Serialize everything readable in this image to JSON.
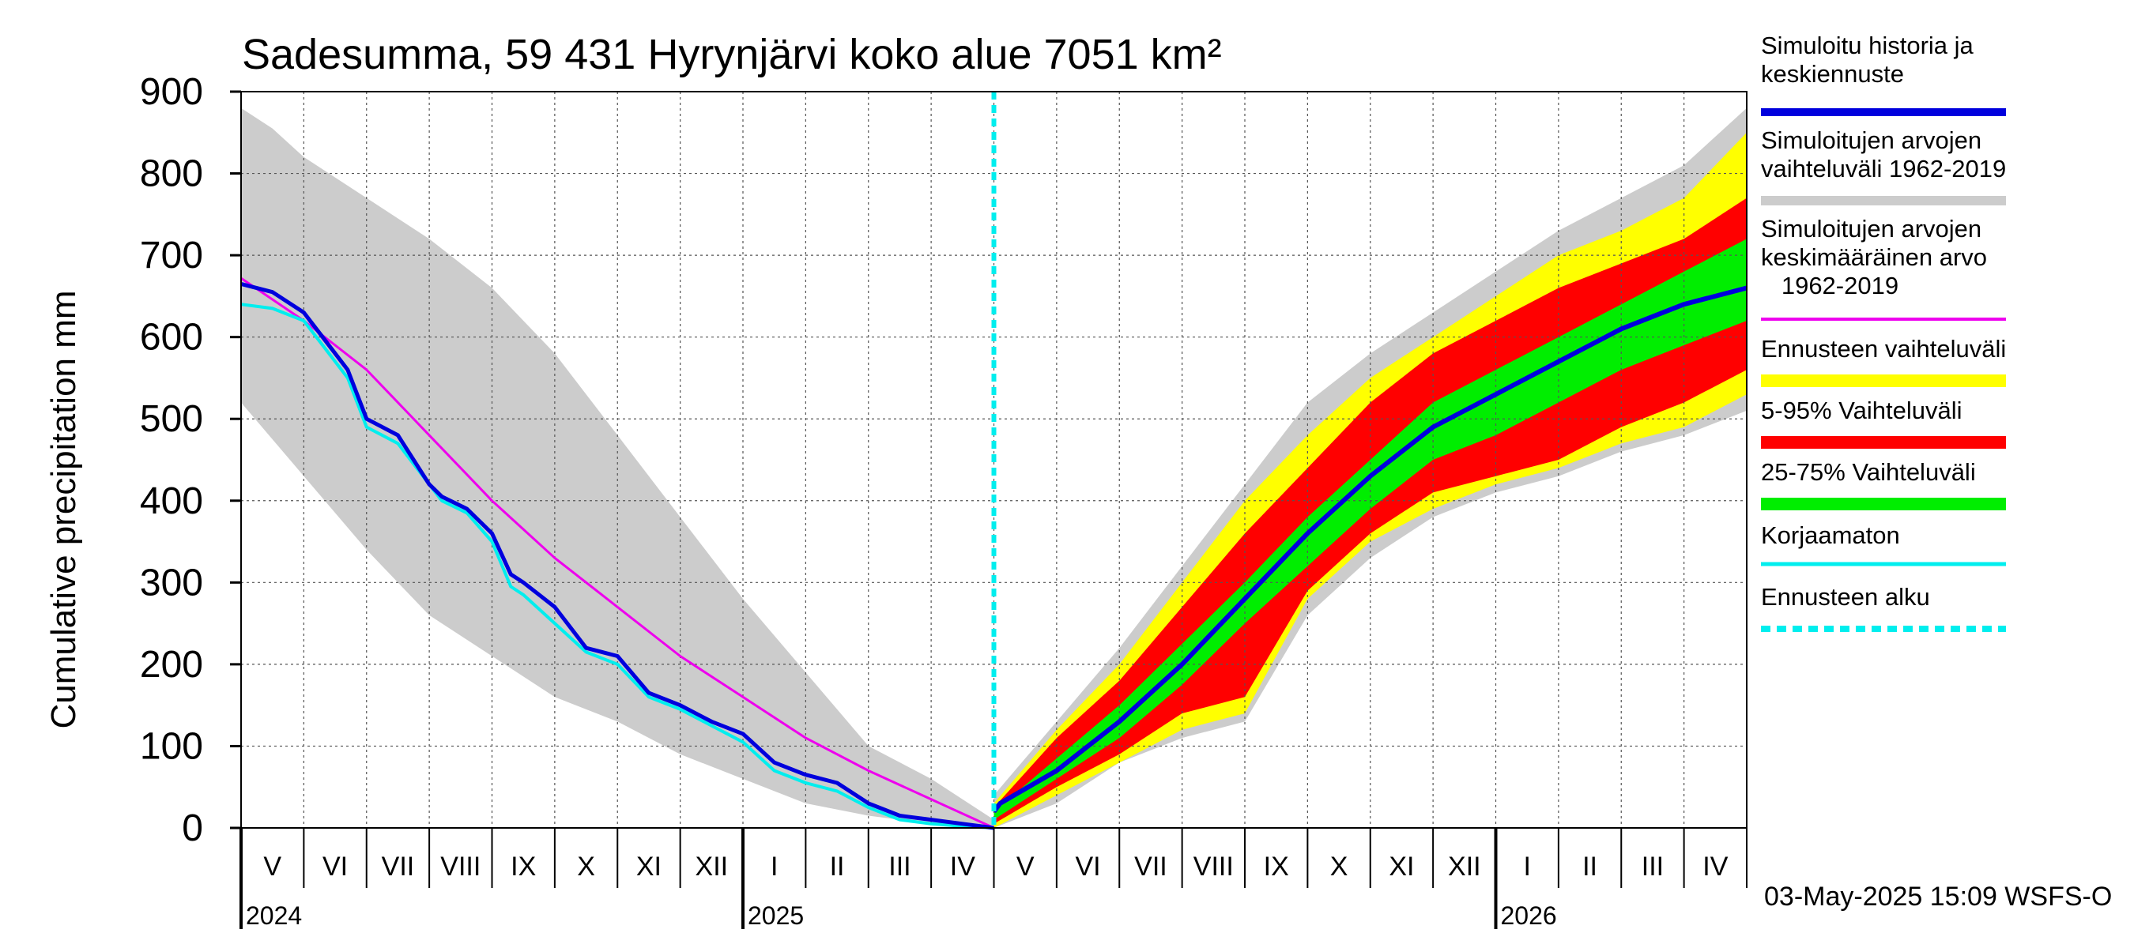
{
  "chart_data": {
    "type": "area",
    "title": "Sadesumma, 59 431 Hyrynjärvi koko alue 7051 km²",
    "ylabel": "Cumulative precipitation   mm",
    "ylim": [
      0,
      900
    ],
    "yticks": [
      0,
      100,
      200,
      300,
      400,
      500,
      600,
      700,
      800,
      900
    ],
    "x_start_month": "2024-05",
    "x_end_month": "2026-05",
    "forecast_start_month_index": 12.0,
    "month_labels": [
      "V",
      "VI",
      "VII",
      "VIII",
      "IX",
      "X",
      "XI",
      "XII",
      "I",
      "II",
      "III",
      "IV",
      "V",
      "VI",
      "VII",
      "VIII",
      "IX",
      "X",
      "XI",
      "XII",
      "I",
      "II",
      "III",
      "IV"
    ],
    "year_labels": [
      {
        "label": "2024",
        "month_index": 0
      },
      {
        "label": "2025",
        "month_index": 8
      },
      {
        "label": "2026",
        "month_index": 20
      }
    ],
    "timestamp": "03-May-2025 15:09 WSFS-O",
    "legend": [
      {
        "label": "Simuloitu historia ja keskiennuste",
        "color": "#0000dd",
        "style": "line"
      },
      {
        "label": "Simuloitujen arvojen vaihteluväli 1962-2019",
        "color": "#cccccc",
        "style": "band"
      },
      {
        "label": "Simuloitujen arvojen keskimääräinen arvo 1962-2019",
        "color": "#ee00ee",
        "style": "thin"
      },
      {
        "label": "Ennusteen vaihteluväli",
        "color": "#ffff00",
        "style": "band"
      },
      {
        "label": "5-95% Vaihteluväli",
        "color": "#ff0000",
        "style": "band"
      },
      {
        "label": "25-75% Vaihteluväli",
        "color": "#00ee00",
        "style": "band"
      },
      {
        "label": "Korjaamaton",
        "color": "#00eeee",
        "style": "thin"
      },
      {
        "label": "Ennusteen alku",
        "color": "#00eeee",
        "style": "dashed"
      }
    ],
    "series": {
      "hist_range_low": {
        "x": [
          0,
          1,
          2,
          3,
          4,
          5,
          6,
          7,
          8,
          9,
          10,
          11,
          12
        ],
        "y": [
          520,
          430,
          340,
          260,
          210,
          160,
          130,
          90,
          60,
          30,
          15,
          5,
          0
        ]
      },
      "hist_range_high": {
        "x": [
          0,
          0.5,
          1,
          2,
          3,
          4,
          5,
          6,
          7,
          8,
          9,
          10,
          11,
          12
        ],
        "y": [
          880,
          855,
          820,
          770,
          720,
          660,
          580,
          480,
          380,
          280,
          190,
          100,
          60,
          10
        ]
      },
      "hist_mean": {
        "x": [
          0,
          1,
          2,
          3,
          4,
          5,
          6,
          7,
          8,
          9,
          10,
          11,
          12
        ],
        "y": [
          672,
          620,
          560,
          480,
          400,
          330,
          270,
          210,
          160,
          110,
          70,
          35,
          0
        ]
      },
      "simulated": {
        "x": [
          0,
          0.5,
          1,
          1.3,
          1.7,
          2,
          2.5,
          3,
          3.2,
          3.6,
          4,
          4.3,
          4.5,
          5,
          5.5,
          6,
          6.5,
          7,
          7.5,
          8,
          8.5,
          9,
          9.5,
          10,
          10.5,
          11,
          11.5,
          12
        ],
        "y": [
          665,
          655,
          630,
          600,
          560,
          500,
          480,
          420,
          405,
          390,
          360,
          310,
          300,
          270,
          220,
          210,
          165,
          150,
          130,
          115,
          80,
          65,
          55,
          30,
          15,
          10,
          5,
          0
        ]
      },
      "uncorrected": {
        "x": [
          0,
          0.5,
          1,
          1.3,
          1.7,
          2,
          2.5,
          3,
          3.2,
          3.6,
          4,
          4.3,
          4.5,
          5,
          5.5,
          6,
          6.5,
          7,
          7.5,
          8,
          8.5,
          9,
          9.5,
          10,
          10.5,
          11,
          11.5,
          12
        ],
        "y": [
          640,
          635,
          620,
          590,
          550,
          490,
          470,
          420,
          400,
          385,
          350,
          295,
          285,
          250,
          215,
          200,
          160,
          145,
          125,
          105,
          70,
          55,
          45,
          25,
          10,
          5,
          2,
          0
        ]
      },
      "forecast_mean": {
        "x": [
          12,
          12.1,
          13,
          14,
          15,
          16,
          17,
          18,
          19,
          20,
          21,
          22,
          23,
          24
        ],
        "y": [
          20,
          30,
          70,
          130,
          200,
          280,
          360,
          430,
          490,
          530,
          570,
          610,
          640,
          660
        ]
      },
      "band_range_low": {
        "x": [
          12,
          13,
          14,
          15,
          16,
          17,
          18,
          19,
          20,
          21,
          22,
          23,
          24
        ],
        "y": [
          0,
          40,
          80,
          120,
          140,
          280,
          350,
          390,
          420,
          440,
          470,
          490,
          530
        ]
      },
      "band_range_high": {
        "x": [
          12,
          13,
          14,
          15,
          16,
          17,
          18,
          19,
          20,
          21,
          22,
          23,
          24
        ],
        "y": [
          30,
          120,
          200,
          300,
          400,
          480,
          550,
          600,
          650,
          700,
          730,
          770,
          850
        ]
      },
      "band_595_low": {
        "x": [
          12,
          13,
          14,
          15,
          16,
          17,
          18,
          19,
          20,
          21,
          22,
          23,
          24
        ],
        "y": [
          5,
          50,
          90,
          140,
          160,
          290,
          360,
          410,
          430,
          450,
          490,
          520,
          560
        ]
      },
      "band_595_high": {
        "x": [
          12,
          13,
          14,
          15,
          16,
          17,
          18,
          19,
          20,
          21,
          22,
          23,
          24
        ],
        "y": [
          25,
          110,
          180,
          270,
          360,
          440,
          520,
          580,
          620,
          660,
          690,
          720,
          770
        ]
      },
      "band_2575_low": {
        "x": [
          12,
          13,
          14,
          15,
          16,
          17,
          18,
          19,
          20,
          21,
          22,
          23,
          24
        ],
        "y": [
          10,
          60,
          110,
          175,
          250,
          320,
          390,
          450,
          480,
          520,
          560,
          590,
          620
        ]
      },
      "band_2575_high": {
        "x": [
          12,
          13,
          14,
          15,
          16,
          17,
          18,
          19,
          20,
          21,
          22,
          23,
          24
        ],
        "y": [
          20,
          85,
          150,
          225,
          300,
          380,
          450,
          520,
          560,
          600,
          640,
          680,
          720
        ]
      },
      "full_range_low": {
        "x": [
          12,
          13,
          14,
          15,
          16,
          17,
          18,
          19,
          20,
          21,
          22,
          23,
          24
        ],
        "y": [
          0,
          30,
          80,
          110,
          130,
          260,
          330,
          380,
          410,
          430,
          460,
          480,
          510
        ]
      },
      "full_range_high": {
        "x": [
          12,
          13,
          14,
          15,
          16,
          17,
          18,
          19,
          20,
          21,
          22,
          23,
          24
        ],
        "y": [
          40,
          130,
          220,
          320,
          420,
          520,
          580,
          630,
          680,
          730,
          770,
          810,
          880
        ]
      }
    }
  }
}
